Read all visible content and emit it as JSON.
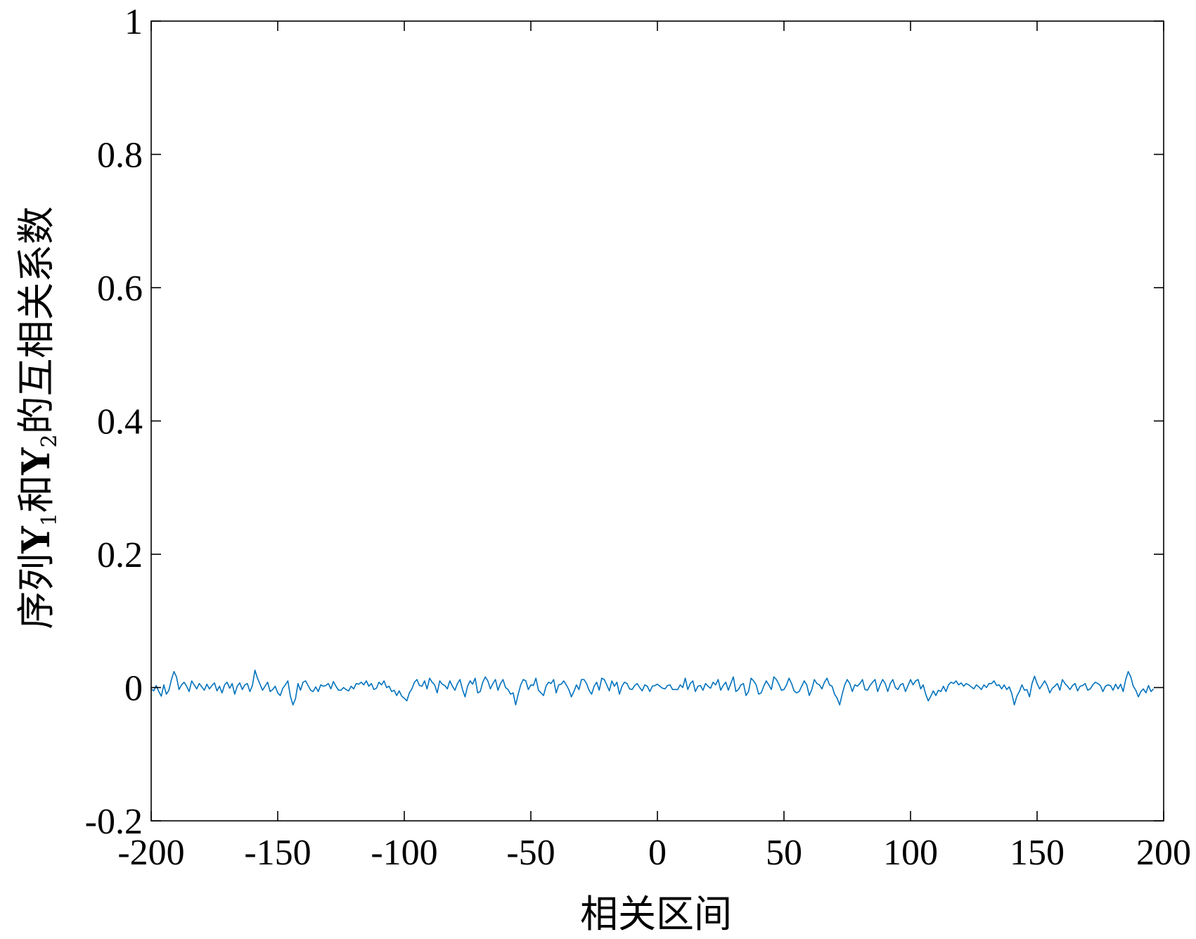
{
  "chart_data": {
    "type": "line",
    "title": "",
    "xlabel": "相关区间",
    "ylabel": {
      "parts": [
        "序列",
        "Y",
        "1",
        "和",
        "Y",
        "2",
        "的互相关系数"
      ]
    },
    "xlim": [
      -200,
      200
    ],
    "ylim": [
      -0.2,
      1
    ],
    "xticks": [
      -200,
      -150,
      -100,
      -50,
      0,
      50,
      100,
      150,
      200
    ],
    "xtick_labels": [
      "-200",
      "-150",
      "-100",
      "-50",
      "0",
      "50",
      "100",
      "150",
      "200"
    ],
    "yticks": [
      -0.2,
      0,
      0.2,
      0.4,
      0.6,
      0.8,
      1
    ],
    "ytick_labels": [
      "-0.2",
      "0",
      "0.2",
      "0.4",
      "0.6",
      "0.8",
      "1"
    ],
    "grid": false,
    "series": [
      {
        "color": "#0072BD",
        "x_start": -200,
        "x_step": 1,
        "values": [
          -0.002,
          -0.005,
          0.003,
          -0.006,
          -0.013,
          0.004,
          -0.01,
          -0.004,
          0.012,
          0.024,
          0.016,
          -0.003,
          0.004,
          0.008,
          0.002,
          -0.006,
          0.01,
          0.004,
          -0.002,
          0.006,
          0.001,
          -0.004,
          0.005,
          -0.002,
          0.003,
          0.007,
          -0.005,
          0.002,
          -0.008,
          0.004,
          0.008,
          -0.001,
          0.006,
          -0.01,
          0.002,
          0.007,
          -0.003,
          0.004,
          0.006,
          -0.006,
          0.003,
          0.026,
          0.014,
          0.005,
          -0.004,
          0.002,
          0.008,
          -0.006,
          -0.003,
          0.002,
          -0.008,
          -0.012,
          -0.001,
          0.004,
          0.01,
          -0.013,
          -0.026,
          -0.017,
          0.006,
          -0.004,
          0.008,
          0.01,
          0.003,
          -0.004,
          -0.006,
          0.001,
          -0.006,
          0.004,
          0.002,
          0.003,
          0.006,
          -0.002,
          0.009,
          0.002,
          -0.004,
          -0.004,
          0.0,
          -0.003,
          -0.005,
          0.002,
          -0.002,
          0.006,
          0.005,
          0.008,
          0.004,
          0.01,
          0.002,
          0.006,
          -0.003,
          -0.001,
          0.008,
          0.004,
          0.01,
          0.0,
          0.002,
          -0.006,
          -0.004,
          -0.012,
          -0.005,
          -0.013,
          -0.016,
          -0.02,
          -0.008,
          -0.002,
          0.008,
          0.012,
          0.003,
          0.002,
          0.01,
          -0.002,
          0.014,
          0.008,
          0.004,
          -0.008,
          0.01,
          0.005,
          0.003,
          -0.002,
          0.01,
          0.002,
          -0.004,
          0.006,
          0.012,
          -0.003,
          -0.014,
          0.002,
          0.01,
          0.005,
          0.014,
          -0.008,
          -0.006,
          0.008,
          0.016,
          0.01,
          -0.002,
          0.006,
          0.012,
          -0.004,
          0.006,
          0.012,
          0.0,
          -0.003,
          -0.01,
          -0.008,
          -0.026,
          -0.01,
          0.004,
          0.012,
          0.01,
          -0.003,
          0.004,
          0.003,
          0.014,
          -0.004,
          -0.008,
          -0.012,
          0.002,
          0.008,
          0.006,
          0.012,
          -0.008,
          0.004,
          0.005,
          0.01,
          0.004,
          -0.003,
          -0.014,
          -0.006,
          0.004,
          -0.003,
          0.012,
          0.012,
          0.006,
          -0.004,
          -0.01,
          0.002,
          0.008,
          -0.004,
          0.014,
          0.012,
          0.004,
          -0.005,
          0.01,
          0.002,
          0.008,
          -0.01,
          0.002,
          0.008,
          0.006,
          -0.002,
          -0.003,
          0.003,
          0.006,
          0.0,
          -0.005,
          0.004,
          0.002,
          -0.006,
          0.002,
          0.003,
          0.005,
          0.002,
          -0.001,
          -0.002,
          0.003,
          0.004,
          -0.003,
          -0.003,
          -0.003,
          0.004,
          0.0,
          0.014,
          -0.003,
          0.006,
          0.01,
          -0.006,
          0.002,
          0.003,
          -0.004,
          0.006,
          0.002,
          -0.001,
          0.008,
          0.004,
          0.012,
          -0.004,
          0.003,
          0.008,
          -0.004,
          0.006,
          0.016,
          -0.006,
          -0.003,
          0.004,
          0.006,
          -0.012,
          -0.006,
          0.014,
          0.01,
          0.004,
          -0.01,
          -0.008,
          0.002,
          0.01,
          0.004,
          -0.003,
          0.016,
          0.012,
          0.005,
          -0.004,
          -0.003,
          0.004,
          0.014,
          0.006,
          -0.005,
          -0.008,
          -0.006,
          0.002,
          0.01,
          0.004,
          -0.012,
          -0.003,
          0.012,
          0.006,
          0.004,
          -0.002,
          0.008,
          0.014,
          0.004,
          0.002,
          -0.01,
          -0.016,
          -0.026,
          -0.01,
          0.004,
          0.012,
          0.006,
          -0.006,
          0.004,
          0.002,
          0.006,
          0.012,
          -0.003,
          -0.004,
          0.003,
          0.008,
          0.012,
          -0.006,
          0.004,
          0.012,
          0.006,
          -0.006,
          0.006,
          0.012,
          0.0,
          -0.003,
          0.004,
          0.006,
          -0.006,
          0.003,
          0.012,
          0.004,
          0.01,
          0.012,
          -0.002,
          0.004,
          -0.01,
          -0.02,
          -0.013,
          -0.005,
          -0.012,
          -0.004,
          -0.006,
          0.002,
          -0.006,
          0.004,
          0.008,
          0.006,
          0.01,
          0.004,
          0.007,
          0.002,
          0.006,
          0.004,
          0.001,
          -0.002,
          0.004,
          0.001,
          -0.003,
          0.004,
          0.0,
          0.006,
          0.006,
          0.01,
          0.003,
          0.004,
          -0.002,
          0.004,
          -0.003,
          0.001,
          -0.009,
          -0.026,
          -0.013,
          -0.006,
          0.004,
          -0.004,
          -0.003,
          -0.014,
          0.006,
          0.017,
          0.006,
          -0.002,
          0.004,
          0.01,
          0.003,
          -0.008,
          -0.001,
          0.002,
          0.006,
          -0.004,
          0.012,
          0.006,
          0.002,
          -0.003,
          0.003,
          0.006,
          -0.005,
          0.002,
          0.003,
          0.006,
          -0.004,
          -0.002,
          0.004,
          0.008,
          0.006,
          0.003,
          -0.006,
          0.002,
          0.004,
          0.003,
          -0.004,
          0.005,
          -0.002,
          0.005,
          -0.006,
          0.012,
          0.024,
          0.016,
          0.002,
          -0.004,
          -0.014,
          -0.006,
          -0.002,
          -0.008,
          0.003,
          -0.006,
          -0.002
        ]
      }
    ]
  }
}
